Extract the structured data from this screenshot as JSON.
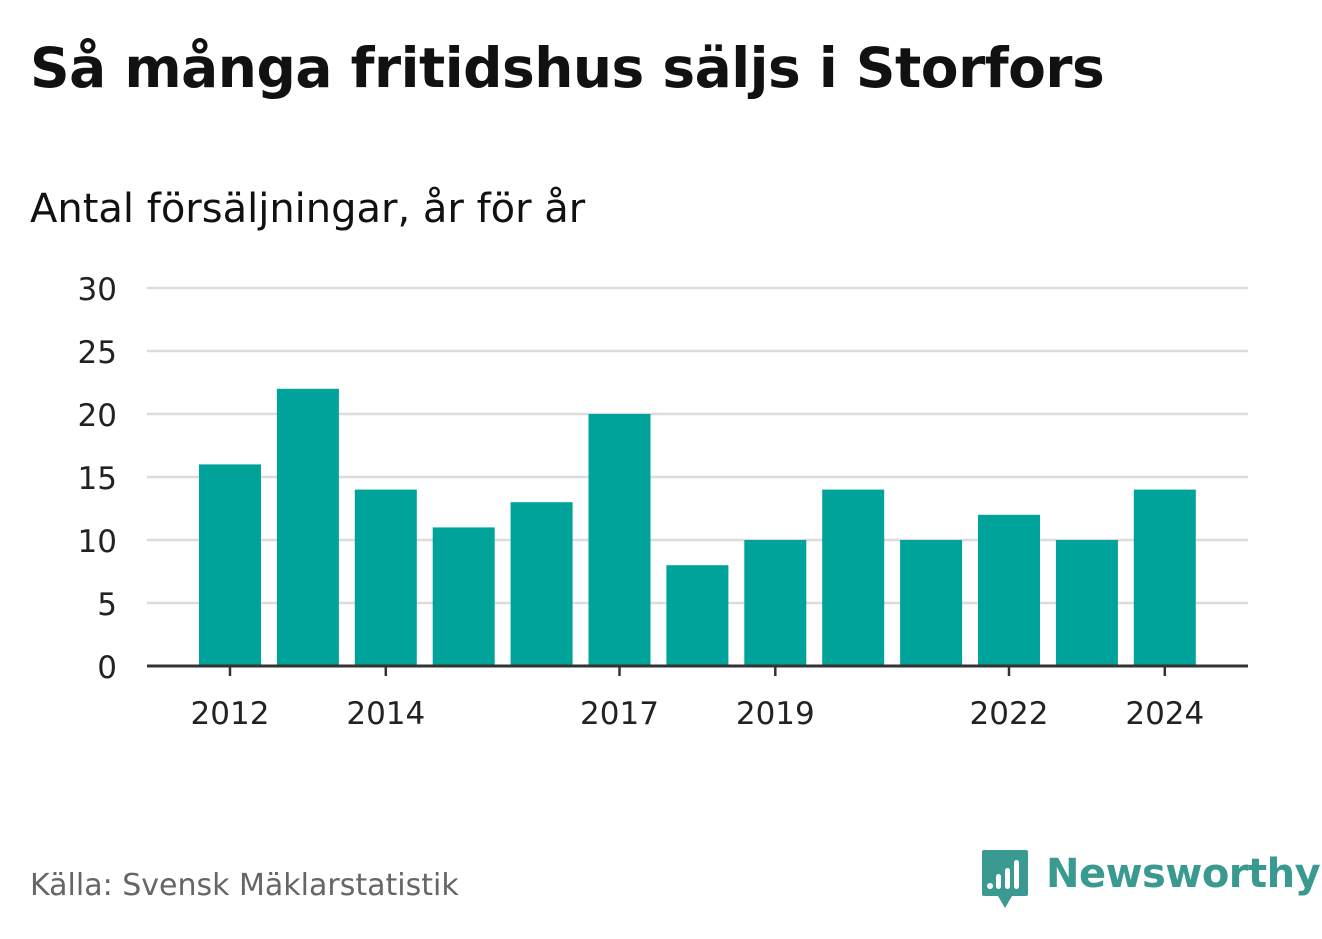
{
  "header": {
    "title": "Så många fritidshus säljs i Storfors",
    "subtitle": "Antal försäljningar, år för år"
  },
  "footer": {
    "source": "Källa: Svensk Mäklarstatistik",
    "brand": "Newsworthy"
  },
  "colors": {
    "bar": "#00a39a",
    "grid": "#dcdcdc",
    "axis": "#333333",
    "brand": "#3a9990"
  },
  "chart_data": {
    "type": "bar",
    "categories": [
      "2012",
      "2013",
      "2014",
      "2015",
      "2016",
      "2017",
      "2018",
      "2019",
      "2020",
      "2021",
      "2022",
      "2023",
      "2024"
    ],
    "values": [
      16,
      22,
      14,
      11,
      13,
      20,
      8,
      10,
      14,
      10,
      12,
      10,
      14
    ],
    "x_tick_labels": [
      "2012",
      "2014",
      "2017",
      "2019",
      "2022",
      "2024"
    ],
    "y_ticks": [
      0,
      5,
      10,
      15,
      20,
      25,
      30
    ],
    "ylim": [
      0,
      30
    ],
    "grid": true,
    "legend": "none"
  }
}
